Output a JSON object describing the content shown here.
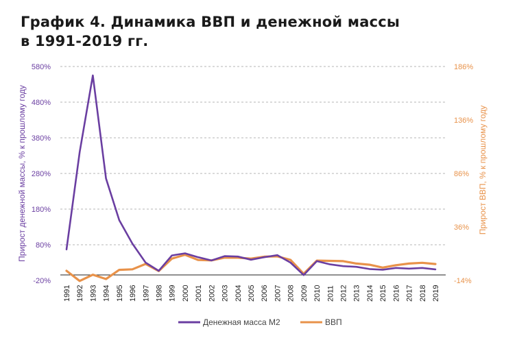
{
  "title": {
    "line1": "График 4. Динамика ВВП и денежной массы",
    "line2": "в 1991-2019 гг."
  },
  "chart_data": {
    "type": "line",
    "x": [
      "1991",
      "1992",
      "1993",
      "1994",
      "1995",
      "1996",
      "1997",
      "1998",
      "1999",
      "2000",
      "2001",
      "2002",
      "2003",
      "2004",
      "2005",
      "2006",
      "2007",
      "2008",
      "2009",
      "2010",
      "2011",
      "2012",
      "2013",
      "2014",
      "2015",
      "2016",
      "2017",
      "2018",
      "2019"
    ],
    "series": [
      {
        "name": "Денежная масса М2",
        "axis": "left",
        "color": "#6a3ea1",
        "values": [
          67,
          340,
          555,
          266,
          149,
          83,
          30,
          7,
          50,
          56,
          45,
          36,
          48,
          47,
          38,
          45,
          51,
          30,
          -5,
          34,
          25,
          20,
          18,
          12,
          10,
          15,
          13,
          15,
          11
        ]
      },
      {
        "name": "ВВП",
        "axis": "right",
        "color": "#e8924a",
        "values": [
          -5,
          -14.5,
          -8.7,
          -12.7,
          -4.1,
          -3.6,
          1.4,
          -5.3,
          6.4,
          10,
          5.1,
          4.7,
          7.3,
          7.2,
          6.4,
          8.2,
          8.5,
          5.2,
          -7.8,
          4.5,
          4.3,
          4.0,
          1.8,
          0.7,
          -2.0,
          0.2,
          1.8,
          2.5,
          1.3
        ]
      }
    ],
    "left_axis": {
      "label": "Прирост денежной  массы, % к прошлому году",
      "min": -20,
      "max": 580,
      "step": 100,
      "ticks": [
        "-20%",
        "80%",
        "180%",
        "280%",
        "380%",
        "480%",
        "580%"
      ]
    },
    "right_axis": {
      "label": "Прирост ВВП, % к прошлому году",
      "min": -14,
      "max": 186,
      "step": 50,
      "ticks": [
        "-14%",
        "36%",
        "86%",
        "136%",
        "186%"
      ]
    },
    "grid": true,
    "legend": "bottom"
  }
}
